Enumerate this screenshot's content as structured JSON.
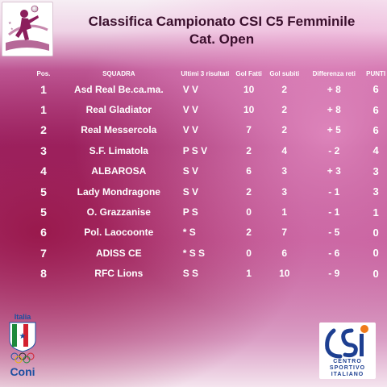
{
  "title": {
    "line1": "Classifica Campionato CSI C5 Femminile",
    "line2": "Cat. Open"
  },
  "table": {
    "headers": {
      "pos": "Pos.",
      "team": "SQUADRA",
      "last3": "Ultimi 3 risultati",
      "gf": "Gol Fatti",
      "gs": "Gol subiti",
      "diff": "Differenza reti",
      "pts": "PUNTI"
    },
    "rows": [
      {
        "pos": "1",
        "team": "Asd Real Be.ca.ma.",
        "last3": "V V",
        "gf": "10",
        "gs": "2",
        "diff": "+ 8",
        "pts": "6"
      },
      {
        "pos": "1",
        "team": "Real Gladiator",
        "last3": "V V",
        "gf": "10",
        "gs": "2",
        "diff": "+ 8",
        "pts": "6"
      },
      {
        "pos": "2",
        "team": "Real Messercola",
        "last3": "V V",
        "gf": "7",
        "gs": "2",
        "diff": "+ 5",
        "pts": "6"
      },
      {
        "pos": "3",
        "team": "S.F. Limatola",
        "last3": "P S V",
        "gf": "2",
        "gs": "4",
        "diff": "- 2",
        "pts": "4"
      },
      {
        "pos": "4",
        "team": "ALBAROSA",
        "last3": "S V",
        "gf": "6",
        "gs": "3",
        "diff": "+ 3",
        "pts": "3"
      },
      {
        "pos": "5",
        "team": "Lady Mondragone",
        "last3": "S V",
        "gf": "2",
        "gs": "3",
        "diff": "- 1",
        "pts": "3"
      },
      {
        "pos": "5",
        "team": "O. Grazzanise",
        "last3": "P S",
        "gf": "0",
        "gs": "1",
        "diff": "- 1",
        "pts": "1"
      },
      {
        "pos": "6",
        "team": "Pol. Laocoonte",
        "last3": "* S",
        "gf": "2",
        "gs": "7",
        "diff": "- 5",
        "pts": "0"
      },
      {
        "pos": "7",
        "team": "ADISS CE",
        "last3": "* S S",
        "gf": "0",
        "gs": "6",
        "diff": "- 6",
        "pts": "0"
      },
      {
        "pos": "8",
        "team": "RFC Lions",
        "last3": "S S",
        "gf": "1",
        "gs": "10",
        "diff": "- 9",
        "pts": "0"
      }
    ]
  },
  "logos": {
    "coni_top": "Italia",
    "coni_bottom": "Coni",
    "csi_line1": "CENTRO",
    "csi_line2": "SPORTIVO",
    "csi_line3": "ITALIANO"
  },
  "colors": {
    "title_text": "#3a0f2c",
    "table_text": "#ffffff",
    "csi_blue": "#1d3f91",
    "coni_blue": "#1b4fa0"
  }
}
